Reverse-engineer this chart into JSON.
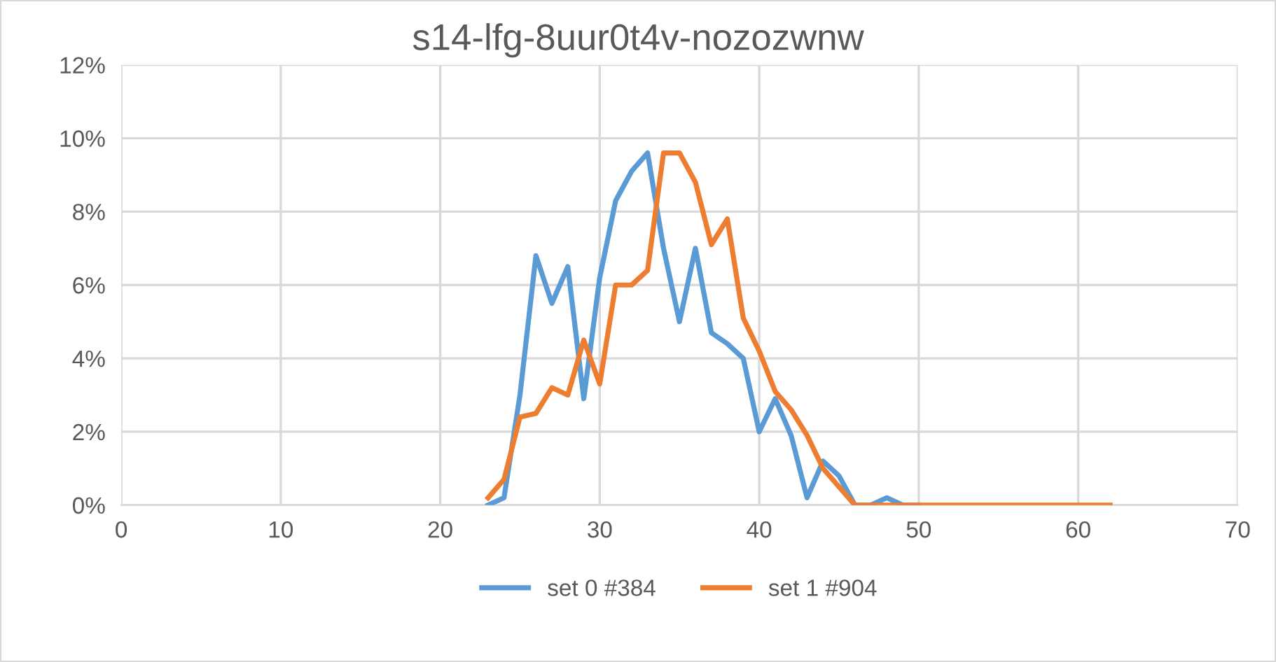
{
  "chart_data": {
    "type": "line",
    "title": "s14-lfg-8uur0t4v-nozozwnw",
    "x": [
      23,
      24,
      25,
      26,
      27,
      28,
      29,
      30,
      31,
      32,
      33,
      34,
      35,
      36,
      37,
      38,
      39,
      40,
      41,
      42,
      43,
      44,
      45,
      46,
      47,
      48,
      49,
      50,
      51,
      52,
      53,
      54,
      55,
      56,
      57,
      58,
      59,
      60,
      61,
      62
    ],
    "series": [
      {
        "name": "set 0 #384",
        "color": "#5b9bd5",
        "values": [
          0,
          0.2,
          3.0,
          6.8,
          5.5,
          6.5,
          2.9,
          6.2,
          8.3,
          9.1,
          9.6,
          7.0,
          5.0,
          7.0,
          4.7,
          4.4,
          4.0,
          2.0,
          2.9,
          1.9,
          0.2,
          1.2,
          0.8,
          0,
          0,
          0.2,
          0,
          0,
          null,
          null,
          null,
          null,
          null,
          null,
          null,
          null,
          null,
          null,
          null,
          null
        ]
      },
      {
        "name": "set 1 #904",
        "color": "#ed7d31",
        "values": [
          0.2,
          0.7,
          2.4,
          2.5,
          3.2,
          3.0,
          4.5,
          3.3,
          6.0,
          6.0,
          6.4,
          9.6,
          9.6,
          8.8,
          7.1,
          7.8,
          5.1,
          4.2,
          3.1,
          2.6,
          1.9,
          1.0,
          0.5,
          0,
          0,
          0,
          0,
          0,
          0,
          0,
          0,
          0,
          0,
          0,
          0,
          0,
          0,
          0,
          0,
          0
        ]
      }
    ],
    "xlim": [
      0,
      70
    ],
    "xticks": [
      0,
      10,
      20,
      30,
      40,
      50,
      60,
      70
    ],
    "ylim": [
      0,
      12
    ],
    "yticks": [
      {
        "value": 0,
        "label": "0%"
      },
      {
        "value": 2,
        "label": "2%"
      },
      {
        "value": 4,
        "label": "4%"
      },
      {
        "value": 6,
        "label": "6%"
      },
      {
        "value": 8,
        "label": "8%"
      },
      {
        "value": 10,
        "label": "10%"
      },
      {
        "value": 12,
        "label": "12%"
      }
    ],
    "grid": true,
    "legend": "bottom",
    "marker": "none",
    "line_style": "solid"
  }
}
